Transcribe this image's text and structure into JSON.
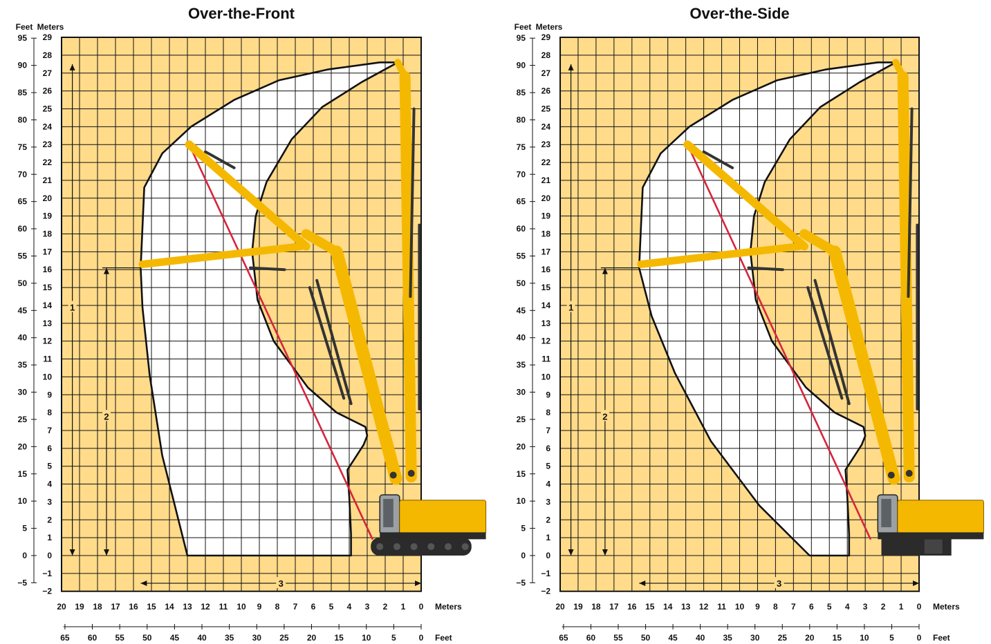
{
  "colors": {
    "grid_bg": "#FFDB8A",
    "envelope_fill": "#FFFFFF",
    "grid_line": "#111111",
    "envelope_line": "#111111",
    "reach_line": "#D6243C",
    "machine_yellow": "#F5B800",
    "machine_dark": "#333333"
  },
  "charts": [
    {
      "title": "Over-the-Front",
      "feet_header": "Feet",
      "meters_header": "Meters",
      "bottom_meters_unit": "Meters",
      "bottom_feet_unit": "Feet",
      "dimension_labels": [
        "1",
        "2",
        "3"
      ],
      "undercarriage": "front"
    },
    {
      "title": "Over-the-Side",
      "feet_header": "Feet",
      "meters_header": "Meters",
      "bottom_meters_unit": "Meters",
      "bottom_feet_unit": "Feet",
      "dimension_labels": [
        "1",
        "2",
        "3"
      ],
      "undercarriage": "side"
    }
  ],
  "chart_data": [
    {
      "type": "working-range",
      "title": "Over-the-Front",
      "x_meters_ticks": [
        20,
        19,
        18,
        17,
        16,
        15,
        14,
        13,
        12,
        11,
        10,
        9,
        8,
        7,
        6,
        5,
        4,
        3,
        2,
        1,
        0
      ],
      "x_feet_ticks": [
        65,
        60,
        55,
        50,
        45,
        40,
        35,
        30,
        25,
        20,
        15,
        10,
        5,
        0
      ],
      "y_meters_ticks": [
        "29",
        "28",
        "27",
        "26",
        "25",
        "24",
        "23",
        "22",
        "21",
        "20",
        "19",
        "18",
        "17",
        "16",
        "15",
        "14",
        "13",
        "12",
        "11",
        "10",
        "9",
        "8",
        "7",
        "6",
        "5",
        "4",
        "3",
        "2",
        "1",
        "0",
        "−1",
        "−2"
      ],
      "y_feet_ticks": [
        "95",
        "90",
        "85",
        "80",
        "75",
        "70",
        "65",
        "60",
        "55",
        "50",
        "45",
        "40",
        "35",
        "30",
        "25",
        "20",
        "15",
        "10",
        "5",
        "0",
        "−5"
      ],
      "xlim_m": [
        20,
        0
      ],
      "ylim_m": [
        -2,
        29
      ],
      "max_height_m": 27.5,
      "pin_height_m": 16.1,
      "max_reach_m": 15.6,
      "outer_envelope_m": [
        [
          15.6,
          16.1
        ],
        [
          15.4,
          20.6
        ],
        [
          14.4,
          22.5
        ],
        [
          12.8,
          24.0
        ],
        [
          10.4,
          25.5
        ],
        [
          7.9,
          26.6
        ],
        [
          5.2,
          27.2
        ],
        [
          2.3,
          27.6
        ],
        [
          1.3,
          27.6
        ],
        [
          3.3,
          26.5
        ],
        [
          5.5,
          25.1
        ],
        [
          7.2,
          23.3
        ],
        [
          8.6,
          20.9
        ],
        [
          9.2,
          19.0
        ],
        [
          9.4,
          17.0
        ],
        [
          9.1,
          14.3
        ],
        [
          8.2,
          12.0
        ],
        [
          6.3,
          9.4
        ],
        [
          4.7,
          8.0
        ],
        [
          3.1,
          7.2
        ],
        [
          3.0,
          6.7
        ],
        [
          3.2,
          6.2
        ],
        [
          4.1,
          4.8
        ],
        [
          4.0,
          3.3
        ],
        [
          3.9,
          1.2
        ],
        [
          3.9,
          0.0
        ],
        [
          13.0,
          0.0
        ],
        [
          14.4,
          5.6
        ],
        [
          15.1,
          10.1
        ],
        [
          15.5,
          13.9
        ],
        [
          15.6,
          16.1
        ]
      ]
    },
    {
      "type": "working-range",
      "title": "Over-the-Side",
      "x_meters_ticks": [
        20,
        19,
        18,
        17,
        16,
        15,
        14,
        13,
        12,
        11,
        10,
        9,
        8,
        7,
        6,
        5,
        4,
        3,
        2,
        1,
        0
      ],
      "x_feet_ticks": [
        65,
        60,
        55,
        50,
        45,
        40,
        35,
        30,
        25,
        20,
        15,
        10,
        5,
        0
      ],
      "y_meters_ticks": [
        "29",
        "28",
        "27",
        "26",
        "25",
        "24",
        "23",
        "22",
        "21",
        "20",
        "19",
        "18",
        "17",
        "16",
        "15",
        "14",
        "13",
        "12",
        "11",
        "10",
        "9",
        "8",
        "7",
        "6",
        "5",
        "4",
        "3",
        "2",
        "1",
        "0",
        "−1",
        "−2"
      ],
      "y_feet_ticks": [
        "95",
        "90",
        "85",
        "80",
        "75",
        "70",
        "65",
        "60",
        "55",
        "50",
        "45",
        "40",
        "35",
        "30",
        "25",
        "20",
        "15",
        "10",
        "5",
        "0",
        "−5"
      ],
      "xlim_m": [
        20,
        0
      ],
      "ylim_m": [
        -2,
        29
      ],
      "max_height_m": 27.5,
      "pin_height_m": 16.1,
      "max_reach_m": 15.6,
      "outer_envelope_m": [
        [
          15.6,
          16.1
        ],
        [
          15.4,
          20.6
        ],
        [
          14.4,
          22.5
        ],
        [
          12.8,
          24.0
        ],
        [
          10.4,
          25.5
        ],
        [
          7.9,
          26.6
        ],
        [
          5.2,
          27.2
        ],
        [
          2.3,
          27.6
        ],
        [
          1.3,
          27.6
        ],
        [
          3.3,
          26.5
        ],
        [
          5.5,
          25.1
        ],
        [
          7.2,
          23.3
        ],
        [
          8.6,
          20.9
        ],
        [
          9.2,
          19.0
        ],
        [
          9.4,
          17.0
        ],
        [
          9.1,
          14.3
        ],
        [
          8.2,
          12.0
        ],
        [
          6.3,
          9.4
        ],
        [
          4.7,
          8.0
        ],
        [
          3.1,
          7.2
        ],
        [
          3.0,
          6.7
        ],
        [
          3.2,
          6.2
        ],
        [
          4.1,
          4.8
        ],
        [
          4.0,
          3.3
        ],
        [
          3.9,
          1.2
        ],
        [
          3.9,
          0.0
        ],
        [
          6.1,
          0.0
        ],
        [
          8.9,
          2.8
        ],
        [
          11.6,
          6.4
        ],
        [
          13.6,
          10.2
        ],
        [
          14.9,
          13.4
        ],
        [
          15.6,
          16.1
        ]
      ]
    }
  ]
}
